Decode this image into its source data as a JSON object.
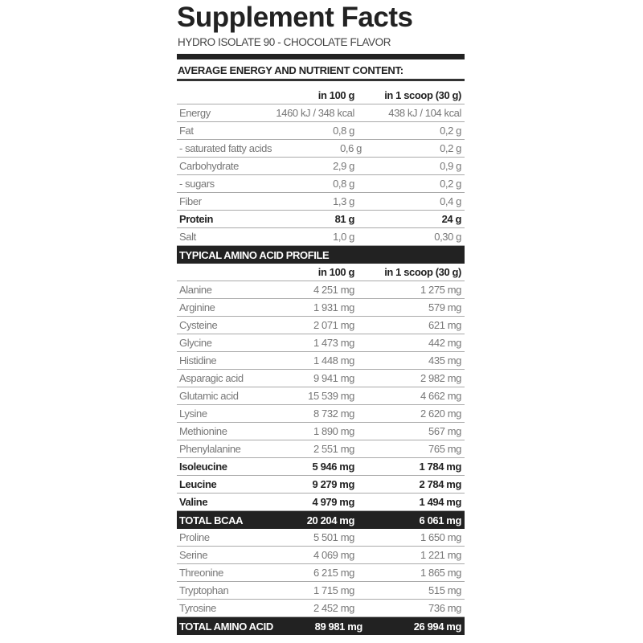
{
  "title": "Supplement Facts",
  "subtitle": "HYDRO ISOLATE 90 - CHOCOLATE FLAVOR",
  "nutrient_section": {
    "heading": "AVERAGE ENERGY AND NUTRIENT CONTENT:",
    "columns": [
      "in 100 g",
      "in 1 scoop (30 g)"
    ],
    "rows": [
      {
        "name": "Energy",
        "per100": "1460 kJ / 348 kcal",
        "perScoop": "438 kJ / 104 kcal",
        "bold": false
      },
      {
        "name": "Fat",
        "per100": "0,8 g",
        "perScoop": "0,2 g",
        "bold": false
      },
      {
        "name": "- saturated fatty acids",
        "per100": "0,6 g",
        "perScoop": "0,2 g",
        "bold": false
      },
      {
        "name": "Carbohydrate",
        "per100": "2,9 g",
        "perScoop": "0,9 g",
        "bold": false
      },
      {
        "name": "- sugars",
        "per100": "0,8 g",
        "perScoop": "0,2 g",
        "bold": false
      },
      {
        "name": "Fiber",
        "per100": "1,3 g",
        "perScoop": "0,4 g",
        "bold": false
      },
      {
        "name": "Protein",
        "per100": "81 g",
        "perScoop": "24 g",
        "bold": true
      },
      {
        "name": "Salt",
        "per100": "1,0 g",
        "perScoop": "0,30 g",
        "bold": false
      }
    ]
  },
  "amino_section": {
    "heading": "TYPICAL AMINO ACID PROFILE",
    "columns": [
      "in 100 g",
      "in 1 scoop (30 g)"
    ],
    "rows": [
      {
        "name": "Alanine",
        "per100": "4 251 mg",
        "perScoop": "1 275 mg",
        "style": "normal"
      },
      {
        "name": "Arginine",
        "per100": "1 931 mg",
        "perScoop": "579 mg",
        "style": "normal"
      },
      {
        "name": "Cysteine",
        "per100": "2 071 mg",
        "perScoop": "621 mg",
        "style": "normal"
      },
      {
        "name": "Glycine",
        "per100": "1 473 mg",
        "perScoop": "442 mg",
        "style": "normal"
      },
      {
        "name": "Histidine",
        "per100": "1 448 mg",
        "perScoop": "435 mg",
        "style": "normal"
      },
      {
        "name": "Asparagic acid",
        "per100": "9 941 mg",
        "perScoop": "2 982 mg",
        "style": "normal"
      },
      {
        "name": "Glutamic acid",
        "per100": "15 539 mg",
        "perScoop": "4 662 mg",
        "style": "normal"
      },
      {
        "name": "Lysine",
        "per100": "8 732 mg",
        "perScoop": "2 620 mg",
        "style": "normal"
      },
      {
        "name": "Methionine",
        "per100": "1 890 mg",
        "perScoop": "567 mg",
        "style": "normal"
      },
      {
        "name": "Phenylalanine",
        "per100": "2 551 mg",
        "perScoop": "765 mg",
        "style": "normal"
      },
      {
        "name": "Isoleucine",
        "per100": "5 946 mg",
        "perScoop": "1 784 mg",
        "style": "bold"
      },
      {
        "name": "Leucine",
        "per100": "9 279 mg",
        "perScoop": "2 784 mg",
        "style": "bold"
      },
      {
        "name": "Valine",
        "per100": "4 979 mg",
        "perScoop": "1 494 mg",
        "style": "bold"
      },
      {
        "name": "TOTAL BCAA",
        "per100": "20 204 mg",
        "perScoop": "6 061 mg",
        "style": "dark"
      },
      {
        "name": "Proline",
        "per100": "5 501 mg",
        "perScoop": "1 650 mg",
        "style": "normal"
      },
      {
        "name": "Serine",
        "per100": "4 069 mg",
        "perScoop": "1 221 mg",
        "style": "normal"
      },
      {
        "name": "Threonine",
        "per100": "6 215 mg",
        "perScoop": "1 865 mg",
        "style": "normal"
      },
      {
        "name": "Tryptophan",
        "per100": "1 715 mg",
        "perScoop": "515 mg",
        "style": "normal"
      },
      {
        "name": "Tyrosine",
        "per100": "2 452 mg",
        "perScoop": "736 mg",
        "style": "normal"
      },
      {
        "name": "TOTAL AMINO ACID",
        "per100": "89 981 mg",
        "perScoop": "26 994 mg",
        "style": "dark"
      }
    ]
  }
}
